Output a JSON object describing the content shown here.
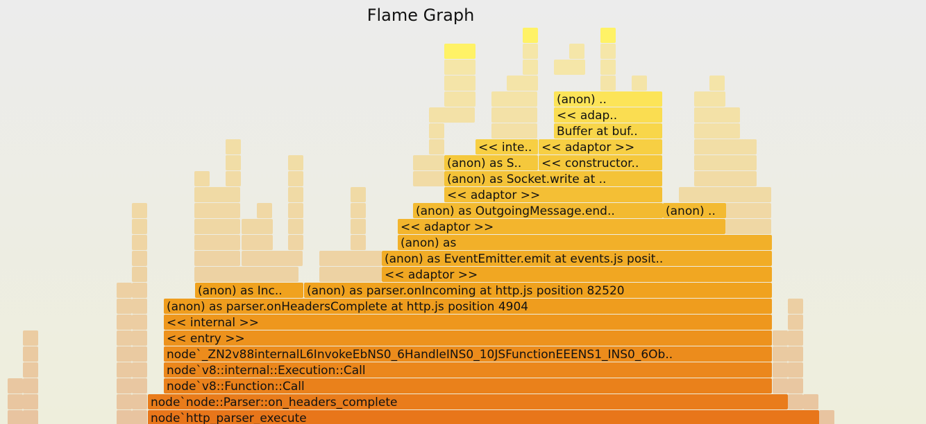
{
  "title": "Flame Graph",
  "frames": {
    "r0": "node`http_parser_execute",
    "r1": "node`node::Parser::on_headers_complete",
    "r2": "node`v8::Function::Call",
    "r3": "node`v8::internal::Execution::Call",
    "r4": "node`_ZN2v88internalL6InvokeEbNS0_6HandleINS0_10JSFunctionEEENS1_INS0_6Ob..",
    "r5": "<< entry >>",
    "r6": "<< internal >>",
    "r7": "(anon) as parser.onHeadersComplete at http.js position 4904",
    "r8a": "(anon) as Inc..",
    "r8b": "(anon) as parser.onIncoming at http.js position 82520",
    "r9": "<< adaptor >>",
    "r10": "(anon) as EventEmitter.emit at events.js posit..",
    "r11": "(anon) as",
    "r12": "<< adaptor >>",
    "r13a": "(anon) as OutgoingMessage.end..",
    "r13b": "(anon) ..",
    "r14": "<< adaptor >>",
    "r15": "(anon) as Socket.write at ..",
    "r16a": "(anon) as S..",
    "r16b": "<< constructor..",
    "r17a": "<< inte..",
    "r17b": "<< adaptor >>",
    "r18": "Buffer at buf..",
    "r19": "<< adap..",
    "r20": "(anon) .."
  },
  "colors": {
    "bottom": "#e8761a",
    "middle": "#f0a21e",
    "upper": "#f5c83c",
    "top": "#fff266",
    "faded": "#e8c9a4"
  }
}
